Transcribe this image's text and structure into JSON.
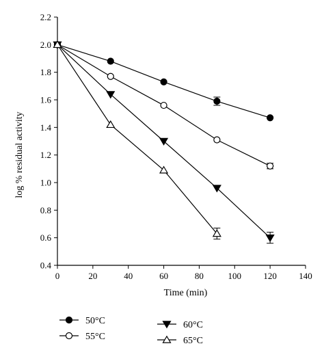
{
  "chart_data": {
    "type": "line",
    "xlabel": "Time (min)",
    "ylabel": "log % residual activity",
    "xlim": [
      0,
      140
    ],
    "ylim": [
      0.4,
      2.2
    ],
    "x_ticks": [
      0,
      20,
      40,
      60,
      80,
      100,
      120,
      140
    ],
    "y_ticks": [
      0.4,
      0.6,
      0.8,
      1.0,
      1.2,
      1.4,
      1.6,
      1.8,
      2.0,
      2.2
    ],
    "grid": false,
    "legend_position": "bottom",
    "series": [
      {
        "name": "50°C",
        "marker": "filled-circle",
        "x": [
          0,
          30,
          60,
          90,
          120
        ],
        "y": [
          2.0,
          1.88,
          1.73,
          1.59,
          1.47
        ],
        "error": [
          0,
          0,
          0,
          0.03,
          0
        ]
      },
      {
        "name": "55°C",
        "marker": "open-circle",
        "x": [
          0,
          30,
          60,
          90,
          120
        ],
        "y": [
          2.0,
          1.77,
          1.56,
          1.31,
          1.12
        ],
        "error": [
          0,
          0,
          0,
          0,
          0.02
        ]
      },
      {
        "name": "60°C",
        "marker": "filled-triangle-down",
        "x": [
          0,
          30,
          60,
          90,
          120
        ],
        "y": [
          2.0,
          1.64,
          1.3,
          0.96,
          0.6
        ],
        "error": [
          0,
          0,
          0,
          0,
          0.04
        ]
      },
      {
        "name": "65°C",
        "marker": "open-triangle-up",
        "x": [
          0,
          30,
          60,
          90
        ],
        "y": [
          2.0,
          1.42,
          1.09,
          0.63
        ],
        "error": [
          0,
          0,
          0,
          0.04
        ]
      }
    ]
  }
}
